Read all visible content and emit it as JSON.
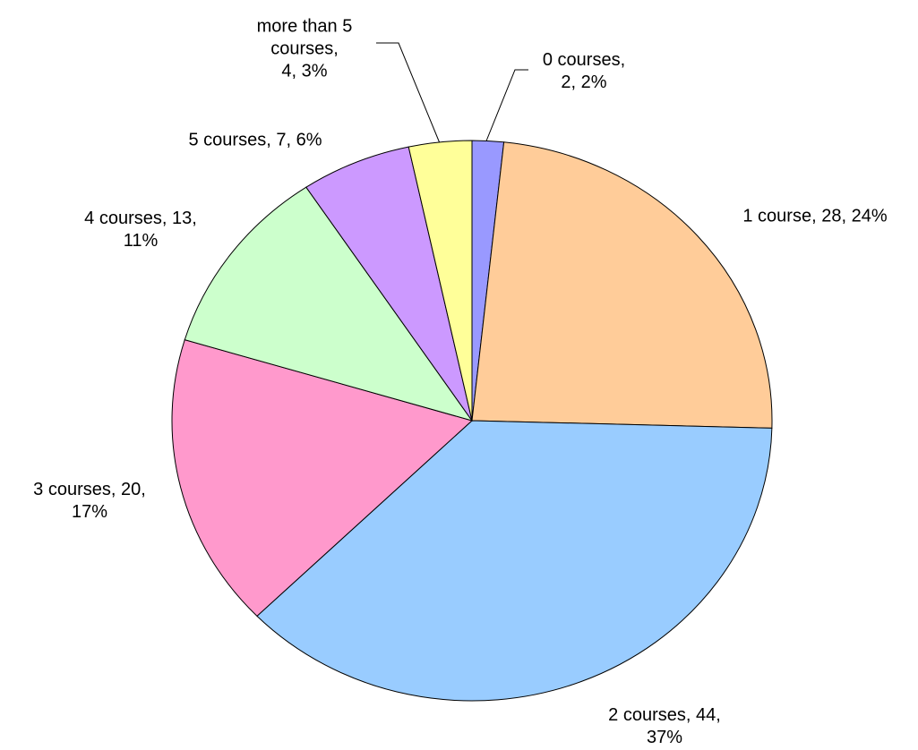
{
  "chart_data": {
    "type": "pie",
    "categories": [
      "0 courses",
      "1 course",
      "2 courses",
      "3 courses",
      "4 courses",
      "5 courses",
      "more than 5 courses"
    ],
    "values": [
      2,
      28,
      44,
      20,
      13,
      7,
      4
    ],
    "percent_labels": [
      "2%",
      "24%",
      "37%",
      "17%",
      "11%",
      "6%",
      "3%"
    ],
    "colors": [
      "#9999ff",
      "#ffcc99",
      "#99ccff",
      "#ff99cc",
      "#ccffcc",
      "#cc99ff",
      "#ffff99"
    ]
  }
}
